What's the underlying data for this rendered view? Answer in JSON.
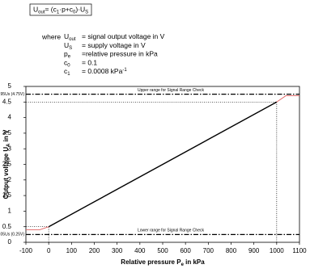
{
  "formula": {
    "parts": [
      "U",
      "out",
      "= (c",
      "1",
      "·p+c",
      "0",
      ")·U",
      "S"
    ]
  },
  "definitions": {
    "lead": "where",
    "items": [
      {
        "symbol": "U",
        "sub": "out",
        "text": "=  signal output voltage in V"
      },
      {
        "symbol": "U",
        "sub": "S",
        "text": "=  supply voltage in V"
      },
      {
        "symbol": "p",
        "sub": "e",
        "text": "=relative pressure in kPa"
      },
      {
        "symbol": "c",
        "sub": "0",
        "text": "=  0.1"
      },
      {
        "symbol": "c",
        "sub": "1",
        "text": "=  0.0008 kPa",
        "sup": "-1"
      }
    ]
  },
  "chart_data": {
    "type": "line",
    "x_label": {
      "text": "Relative pressure P",
      "sub": "e",
      "after": " in kPa"
    },
    "y_label": {
      "text": "Output voltage U",
      "sub": "A",
      "after": " in V"
    },
    "xlim": [
      -100,
      1100
    ],
    "ylim": [
      0,
      5
    ],
    "xticks": [
      -100,
      0,
      100,
      200,
      300,
      400,
      500,
      600,
      700,
      800,
      900,
      1000,
      1100
    ],
    "yticks": [
      0,
      0.5,
      1,
      1.5,
      2,
      2.5,
      3,
      3.5,
      4,
      4.5,
      5
    ],
    "series": [
      {
        "color": "#000000",
        "x": [
          0,
          1000
        ],
        "values": [
          0.5,
          4.5
        ]
      },
      {
        "color": "#e06060",
        "x": [
          -100,
          -40,
          0,
          null,
          1000,
          1040,
          1100
        ],
        "values": [
          0.4,
          0.4,
          0.5,
          null,
          4.5,
          4.7,
          4.7
        ]
      }
    ],
    "reference_lines": [
      {
        "y": 4.75,
        "label": "Upper range for Signal Range Check",
        "tick_label": "0.95Us (4.75V)"
      },
      {
        "y": 0.25,
        "label": "Lower range for Signal Range Check",
        "tick_label": "0.05Us (0.25V)"
      }
    ],
    "guides": [
      {
        "x": [
          -100,
          1000
        ],
        "values": [
          4.5,
          4.5
        ]
      },
      {
        "x": [
          1000,
          1000
        ],
        "values": [
          0,
          4.5
        ]
      },
      {
        "x": [
          -100,
          0
        ],
        "values": [
          0.5,
          0.5
        ]
      },
      {
        "x": [
          0,
          0
        ],
        "values": [
          0,
          0.5
        ]
      }
    ]
  }
}
